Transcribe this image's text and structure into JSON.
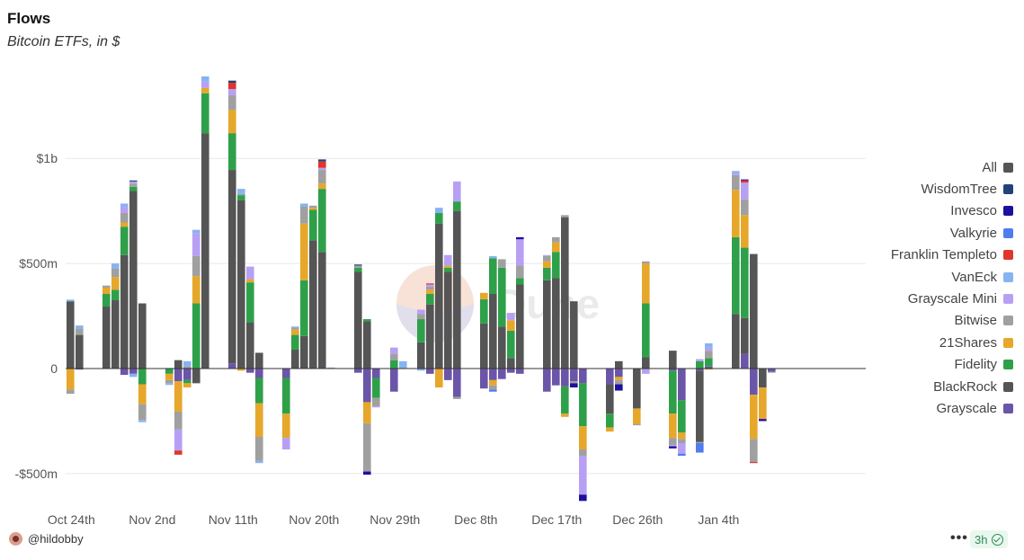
{
  "header": {
    "title": "Flows",
    "subtitle": "Bitcoin ETFs, in $"
  },
  "footer": {
    "user": "@hildobby",
    "more": "•••",
    "refresh": "3h"
  },
  "watermark": "Dune",
  "chart_data": {
    "type": "bar",
    "stacked": true,
    "ylim": [
      -650000000,
      1400000000
    ],
    "y_ticks": [
      {
        "value": 1000000000,
        "label": "$1b"
      },
      {
        "value": 500000000,
        "label": "$500m"
      },
      {
        "value": 0,
        "label": "0"
      },
      {
        "value": -500000000,
        "label": "-$500m"
      }
    ],
    "x_ticks": [
      {
        "index": 0,
        "label": "Oct 24th"
      },
      {
        "index": 9,
        "label": "Nov 2nd"
      },
      {
        "index": 18,
        "label": "Nov 11th"
      },
      {
        "index": 27,
        "label": "Nov 20th"
      },
      {
        "index": 36,
        "label": "Nov 29th"
      },
      {
        "index": 45,
        "label": "Dec 8th"
      },
      {
        "index": 54,
        "label": "Dec 17th"
      },
      {
        "index": 63,
        "label": "Dec 26th"
      },
      {
        "index": 72,
        "label": "Jan 4th"
      }
    ],
    "legend": [
      {
        "name": "All",
        "color": "#555555"
      },
      {
        "name": "WisdomTree",
        "color": "#22427a"
      },
      {
        "name": "Invesco",
        "color": "#1f0fa0"
      },
      {
        "name": "Valkyrie",
        "color": "#4f7cf0"
      },
      {
        "name": "Franklin Templeto",
        "color": "#e0352b"
      },
      {
        "name": "VanEck",
        "color": "#86b4f0"
      },
      {
        "name": "Grayscale Mini",
        "color": "#b7a0f4"
      },
      {
        "name": "Bitwise",
        "color": "#a0a0a0"
      },
      {
        "name": "21Shares",
        "color": "#e6a72a"
      },
      {
        "name": "Fidelity",
        "color": "#2fa04a"
      },
      {
        "name": "BlackRock",
        "color": "#555555"
      },
      {
        "name": "Grayscale",
        "color": "#6b55a8"
      }
    ],
    "bars": [
      {
        "d": "Oct 24th",
        "s": {
          "BlackRock": 320,
          "VanEck": 8,
          "21Shares": -100,
          "Bitwise": -20
        }
      },
      {
        "d": "Oct 25th",
        "s": {
          "BlackRock": 160,
          "Bitwise": 30,
          "VanEck": 15,
          "Grayscale": -5
        }
      },
      {
        "d": "Oct 26th",
        "s": {}
      },
      {
        "d": "Oct 27th",
        "s": {}
      },
      {
        "d": "Oct 28th",
        "s": {
          "BlackRock": 295,
          "Fidelity": 60,
          "21Shares": 30,
          "Bitwise": 10
        }
      },
      {
        "d": "Oct 29th",
        "s": {
          "BlackRock": 325,
          "Fidelity": 50,
          "21Shares": 60,
          "Bitwise": 40,
          "VanEck": 25
        }
      },
      {
        "d": "Oct 30th",
        "s": {
          "BlackRock": 540,
          "Fidelity": 135,
          "21Shares": 20,
          "Bitwise": 45,
          "Grayscale Mini": 30,
          "VanEck": 15,
          "Grayscale": -30
        }
      },
      {
        "d": "Oct 31st",
        "s": {
          "BlackRock": 845,
          "Fidelity": 20,
          "Bitwise": 15,
          "Grayscale Mini": 10,
          "WisdomTree": 5,
          "Grayscale": -25,
          "VanEck": -15
        }
      },
      {
        "d": "Nov 1st",
        "s": {
          "BlackRock": 310,
          "Fidelity": -75,
          "21Shares": -95,
          "Bitwise": -75,
          "VanEck": -10
        }
      },
      {
        "d": "Nov 2nd",
        "s": {}
      },
      {
        "d": "Nov 3rd",
        "s": {}
      },
      {
        "d": "Nov 4th",
        "s": {
          "Fidelity": -25,
          "21Shares": -30,
          "Bitwise": -15,
          "VanEck": -8
        }
      },
      {
        "d": "Nov 5th",
        "s": {
          "BlackRock": 40,
          "Grayscale": -60,
          "21Shares": -145,
          "Bitwise": -85,
          "Grayscale Mini": -100,
          "Franklin Templeto": -20
        }
      },
      {
        "d": "Nov 6th",
        "s": {
          "Grayscale": -55,
          "Fidelity": -15,
          "21Shares": -20,
          "Bitwise": 10,
          "VanEck": 25
        }
      },
      {
        "d": "Nov 7th",
        "s": {
          "BlackRock": -70,
          "Fidelity": 310,
          "21Shares": 130,
          "Bitwise": 95,
          "Grayscale Mini": 110,
          "VanEck": 15
        }
      },
      {
        "d": "Nov 8th",
        "s": {
          "BlackRock": 1120,
          "Fidelity": 190,
          "21Shares": 25,
          "Grayscale Mini": 30,
          "VanEck": 25
        }
      },
      {
        "d": "Nov 9th",
        "s": {}
      },
      {
        "d": "Nov 10th",
        "s": {}
      },
      {
        "d": "Nov 11th",
        "s": {
          "BlackRock": 920,
          "Fidelity": 175,
          "21Shares": 110,
          "Bitwise": 70,
          "Grayscale Mini": 30,
          "Franklin Templeto": 30,
          "WisdomTree": 10,
          "Grayscale": 25
        }
      },
      {
        "d": "Nov 12th",
        "s": {
          "BlackRock": 800,
          "Fidelity": 25,
          "VanEck": 25,
          "Bitwise": 5,
          "21Shares": -10
        }
      },
      {
        "d": "Nov 13th",
        "s": {
          "BlackRock": 220,
          "Fidelity": 190,
          "21Shares": 15,
          "Grayscale Mini": 60,
          "Grayscale": -20
        }
      },
      {
        "d": "Nov 14th",
        "s": {
          "BlackRock": 75,
          "Grayscale": -45,
          "Fidelity": -120,
          "21Shares": -160,
          "Bitwise": -115,
          "VanEck": -10
        }
      },
      {
        "d": "Nov 15th",
        "s": {}
      },
      {
        "d": "Nov 16th",
        "s": {}
      },
      {
        "d": "Nov 17th",
        "s": {
          "Grayscale": -45,
          "Fidelity": -170,
          "21Shares": -115,
          "Grayscale Mini": -55
        }
      },
      {
        "d": "Nov 18th",
        "s": {
          "BlackRock": 90,
          "Fidelity": 70,
          "21Shares": 25,
          "Bitwise": 10,
          "VanEck": 5
        }
      },
      {
        "d": "Nov 19th",
        "s": {
          "BlackRock": 155,
          "Fidelity": 265,
          "21Shares": 270,
          "Bitwise": 80,
          "VanEck": 15
        }
      },
      {
        "d": "Nov 20th",
        "s": {
          "BlackRock": 610,
          "Fidelity": 145,
          "21Shares": 10,
          "Bitwise": 10
        }
      },
      {
        "d": "Nov 21st",
        "s": {
          "BlackRock": 555,
          "Fidelity": 300,
          "21Shares": 25,
          "Bitwise": 65,
          "Grayscale Mini": 10,
          "Franklin Templeto": 30,
          "WisdomTree": 10
        }
      },
      {
        "d": "Nov 22nd",
        "s": {
          "VanEck": 5
        }
      },
      {
        "d": "Nov 23rd",
        "s": {}
      },
      {
        "d": "Nov 24th",
        "s": {}
      },
      {
        "d": "Nov 25th",
        "s": {
          "BlackRock": 460,
          "Fidelity": 20,
          "Bitwise": 10,
          "WisdomTree": 5,
          "Grayscale": -20
        }
      },
      {
        "d": "Nov 26th",
        "s": {
          "BlackRock": 225,
          "Fidelity": 10,
          "Grayscale": -160,
          "Fidelity Out": 0,
          "21Shares": -100,
          "Bitwise": -230,
          "Invesco": -15
        }
      },
      {
        "d": "Nov 27th",
        "s": {
          "Grayscale": -45,
          "Fidelity": -95,
          "Bitwise": -40,
          "Grayscale Mini": -5
        }
      },
      {
        "d": "Nov 28th",
        "s": {}
      },
      {
        "d": "Nov 29th",
        "s": {
          "Fidelity": 40,
          "Bitwise": 30,
          "Grayscale Mini": 30,
          "Grayscale": -110
        }
      },
      {
        "d": "Nov 30th",
        "s": {
          "VanEck": 35
        }
      },
      {
        "d": "Dec 1st",
        "s": {}
      },
      {
        "d": "Dec 2nd",
        "s": {
          "BlackRock": 125,
          "Fidelity": 110,
          "Bitwise": 25,
          "Grayscale Mini": 20,
          "VanEck": -10
        }
      },
      {
        "d": "Dec 3rd",
        "s": {
          "BlackRock": 305,
          "Fidelity": 50,
          "21Shares": 20,
          "Bitwise": 15,
          "Franklin Templeto": 5,
          "Grayscale Mini": 10,
          "Grayscale": -25
        }
      },
      {
        "d": "Dec 4th",
        "s": {
          "BlackRock": 690,
          "Fidelity": 50,
          "21Shares": -90,
          "VanEck": 25
        }
      },
      {
        "d": "Dec 5th",
        "s": {
          "BlackRock": 460,
          "Fidelity": 20,
          "21Shares": 10,
          "Grayscale Mini": 50,
          "Grayscale": -55
        }
      },
      {
        "d": "Dec 6th",
        "s": {
          "BlackRock": 750,
          "Fidelity": 45,
          "Grayscale Mini": 95,
          "Grayscale": -135,
          "Bitwise": -10
        }
      },
      {
        "d": "Dec 7th",
        "s": {}
      },
      {
        "d": "Dec 8th",
        "s": {}
      },
      {
        "d": "Dec 9th",
        "s": {
          "BlackRock": 215,
          "Fidelity": 115,
          "21Shares": 30,
          "Grayscale": -95
        }
      },
      {
        "d": "Dec 10th",
        "s": {
          "BlackRock": 355,
          "Fidelity": 170,
          "VanEck": 10,
          "Grayscale": -55,
          "21Shares": -25,
          "Bitwise": -20,
          "Valkyrie": -10
        }
      },
      {
        "d": "Dec 11th",
        "s": {
          "BlackRock": 200,
          "Fidelity": 280,
          "Bitwise": 40,
          "Grayscale": -50
        }
      },
      {
        "d": "Dec 12th",
        "s": {
          "BlackRock": 50,
          "Fidelity": 130,
          "21Shares": 50,
          "Grayscale Mini": 35,
          "Grayscale": -20
        }
      },
      {
        "d": "Dec 13th",
        "s": {
          "BlackRock": 400,
          "Fidelity": 30,
          "Bitwise": 60,
          "Grayscale Mini": 125,
          "Invesco": 10,
          "Grayscale": -25
        }
      },
      {
        "d": "Dec 14th",
        "s": {}
      },
      {
        "d": "Dec 15th",
        "s": {}
      },
      {
        "d": "Dec 16th",
        "s": {
          "BlackRock": 420,
          "Fidelity": 60,
          "21Shares": 30,
          "Bitwise": 25,
          "Grayscale Mini": 5,
          "Grayscale": -110
        }
      },
      {
        "d": "Dec 17th",
        "s": {
          "BlackRock": 430,
          "Fidelity": 125,
          "21Shares": 45,
          "Bitwise": 25,
          "Grayscale": -80,
          "Fidelity Out": 0
        }
      },
      {
        "d": "Dec 18th",
        "s": {
          "BlackRock": 720,
          "Bitwise": 10,
          "Grayscale": -85,
          "Fidelity": -130,
          "21Shares": -15,
          "Bitwise Out": 0
        }
      },
      {
        "d": "Dec 19th",
        "s": {
          "BlackRock": 320,
          "Grayscale": -60,
          "Bitwise": -10,
          "Invesco": -20
        }
      },
      {
        "d": "Dec 20th",
        "s": {
          "Grayscale": -70,
          "Fidelity": -205,
          "21Shares": -110,
          "Bitwise": -30,
          "Grayscale Mini": -185,
          "Invesco": -30
        }
      },
      {
        "d": "Dec 21st",
        "s": {}
      },
      {
        "d": "Dec 22nd",
        "s": {}
      },
      {
        "d": "Dec 23rd",
        "s": {
          "BlackRock": -140,
          "Grayscale": -75,
          "Fidelity": -65,
          "21Shares": -20
        }
      },
      {
        "d": "Dec 24th",
        "s": {
          "BlackRock": 35,
          "Grayscale": -40,
          "21Shares": -15,
          "Bitwise": -20,
          "Invesco": -30
        }
      },
      {
        "d": "Dec 25th",
        "s": {}
      },
      {
        "d": "Dec 26th",
        "s": {
          "BlackRock": -190,
          "21Shares": -75,
          "Bitwise": -5
        }
      },
      {
        "d": "Dec 27th",
        "s": {
          "BlackRock": 55,
          "Fidelity": 255,
          "21Shares": 190,
          "Bitwise": 10,
          "Grayscale Mini": -25
        }
      },
      {
        "d": "Dec 28th",
        "s": {}
      },
      {
        "d": "Dec 29th",
        "s": {}
      },
      {
        "d": "Dec 30th",
        "s": {
          "BlackRock": 85,
          "Fidelity": -205,
          "21Shares": -115,
          "Bitwise": -35,
          "Grayscale Mini": -5,
          "Invesco": -10,
          "Grayscale": -10
        }
      },
      {
        "d": "Dec 31st",
        "s": {
          "Grayscale": -150,
          "Fidelity": -155,
          "21Shares": -30,
          "Bitwise": -20,
          "Grayscale Mini": -50,
          "Valkyrie": -10
        }
      },
      {
        "d": "Jan 1st",
        "s": {}
      },
      {
        "d": "Jan 2nd",
        "s": {
          "BlackRock": -340,
          "Grayscale": -10,
          "Fidelity": 35,
          "Bitwise": -5,
          "Valkyrie": -45,
          "Grayscale Mini": 10
        }
      },
      {
        "d": "Jan 3rd",
        "s": {
          "Grayscale": 10,
          "Fidelity": 40,
          "21Shares": -5,
          "Bitwise": 35,
          "Grayscale Mini": 15,
          "VanEck": 20
        }
      },
      {
        "d": "Jan 4th",
        "s": {}
      },
      {
        "d": "Jan 5th",
        "s": {}
      },
      {
        "d": "Jan 6th",
        "s": {
          "BlackRock": 260,
          "Fidelity": 365,
          "21Shares": 225,
          "Bitwise": 70,
          "Grayscale Mini": 10,
          "VanEck": 10
        }
      },
      {
        "d": "Jan 7th",
        "s": {
          "Grayscale": 70,
          "BlackRock": 170,
          "Fidelity": 335,
          "21Shares": 155,
          "Bitwise": 75,
          "Grayscale Mini": 80,
          "Franklin Templeto": 10,
          "Invesco": 5
        }
      },
      {
        "d": "Jan 8th",
        "s": {
          "BlackRock": 545,
          "Grayscale": -125,
          "21Shares": -210,
          "Bitwise": -110,
          "Franklin Templeto": -5
        }
      },
      {
        "d": "Jan 9th",
        "s": {
          "BlackRock": -90,
          "21Shares": -150,
          "Invesco": -10
        }
      },
      {
        "d": "Jan 10th",
        "s": {
          "Grayscale": -15,
          "Bitwise": -5
        }
      }
    ]
  }
}
